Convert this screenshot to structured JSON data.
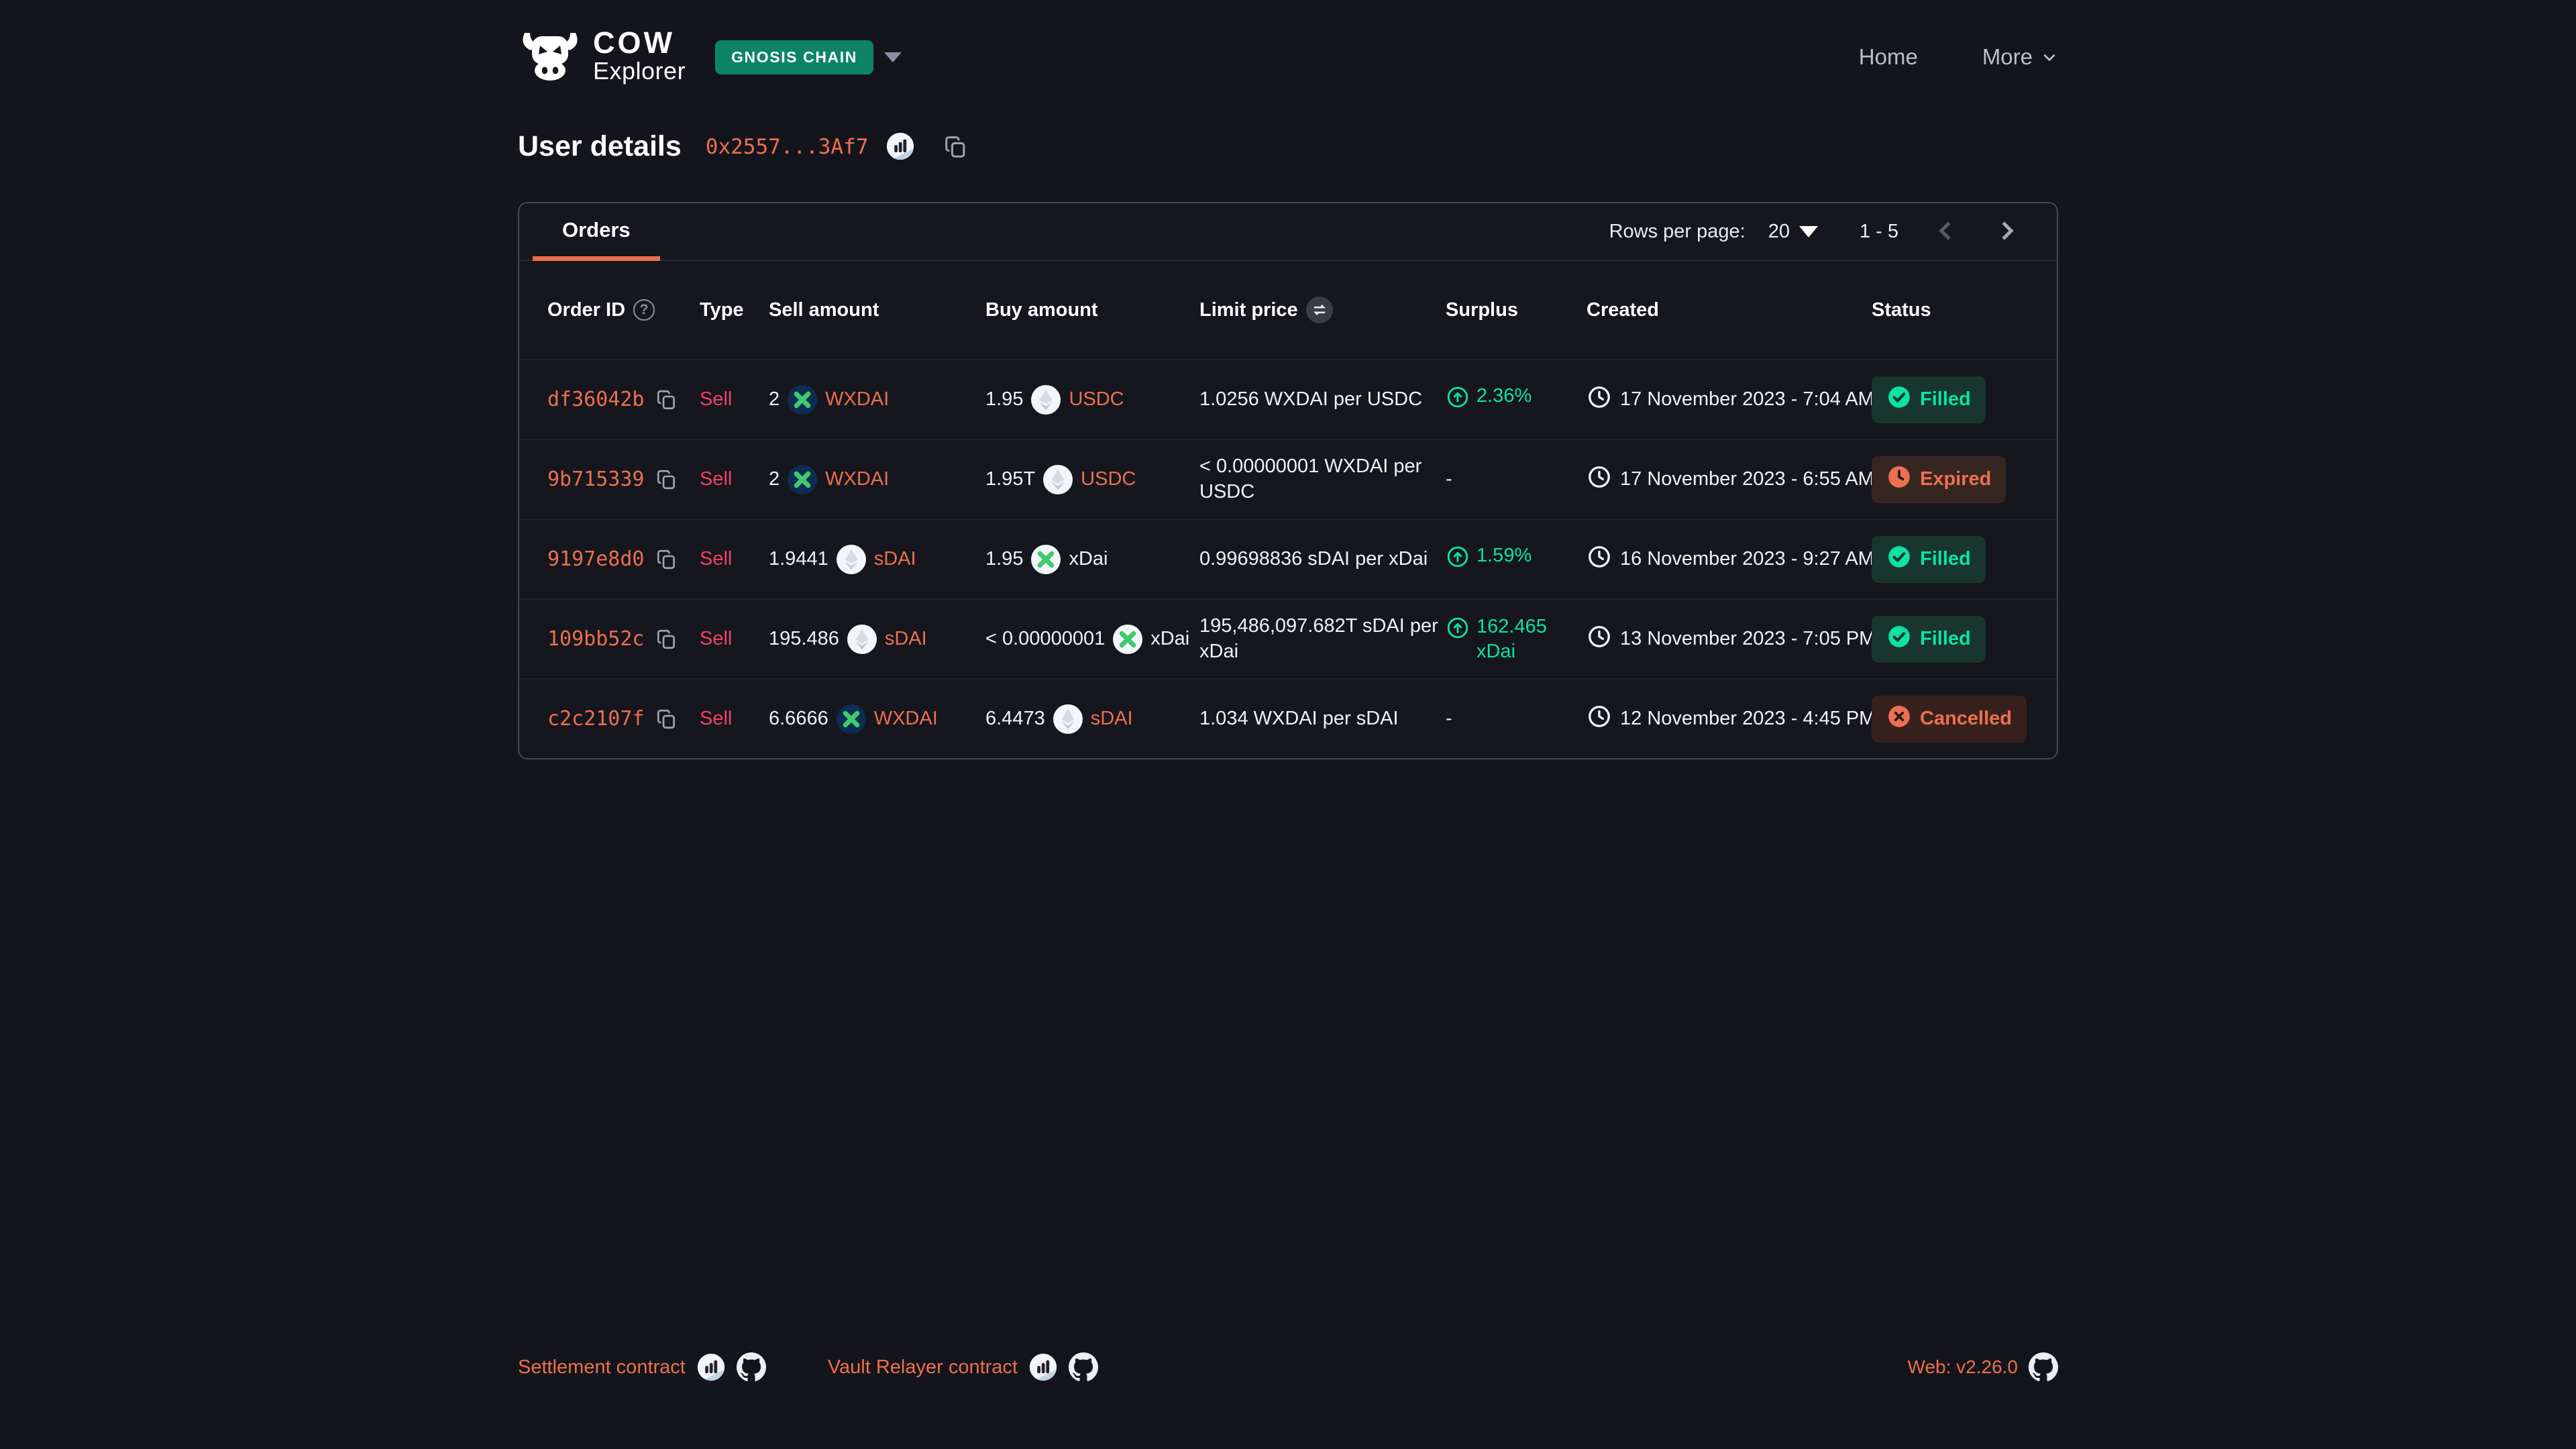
{
  "colors": {
    "accent": "#ed6f4d",
    "sell": "#f2415f",
    "green": "#0ce2a4",
    "warn": "#ed7052",
    "chain_badge_bg": "#0e8466",
    "page_bg": "#14151c"
  },
  "brand": {
    "logo_top": "COW",
    "logo_sub": "Explorer",
    "chain_badge": "GNOSIS CHAIN"
  },
  "nav": {
    "home": "Home",
    "more": "More"
  },
  "page": {
    "title": "User details",
    "address": "0x2557...3Af7"
  },
  "table": {
    "tab_label": "Orders",
    "pagination": {
      "rows_per_page_label": "Rows per page:",
      "page_size": "20",
      "range": "1 - 5"
    },
    "columns": [
      "Order ID",
      "Type",
      "Sell amount",
      "Buy amount",
      "Limit price",
      "Surplus",
      "Created",
      "Status"
    ],
    "rows": [
      {
        "order_id": "df36042b",
        "type": "Sell",
        "sell_amount": "2",
        "sell_token": "WXDAI",
        "sell_icon": "wxdai-token-icon",
        "sell_token_link": true,
        "buy_amount": "1.95",
        "buy_token": "USDC",
        "buy_icon": "eth-placeholder-token-icon",
        "buy_token_link": true,
        "limit_price": "1.0256 WXDAI per USDC",
        "surplus": "2.36%",
        "created": "17 November 2023 - 7:04 AM",
        "status": "Filled",
        "status_kind": "filled"
      },
      {
        "order_id": "9b715339",
        "type": "Sell",
        "sell_amount": "2",
        "sell_token": "WXDAI",
        "sell_icon": "wxdai-token-icon",
        "sell_token_link": true,
        "buy_amount": "1.95T",
        "buy_token": "USDC",
        "buy_icon": "eth-placeholder-token-icon",
        "buy_token_link": true,
        "limit_price": "< 0.00000001 WXDAI per USDC",
        "surplus": "-",
        "created": "17 November 2023 - 6:55 AM",
        "status": "Expired",
        "status_kind": "expired"
      },
      {
        "order_id": "9197e8d0",
        "type": "Sell",
        "sell_amount": "1.9441",
        "sell_token": "sDAI",
        "sell_icon": "eth-placeholder-token-icon",
        "sell_token_link": true,
        "buy_amount": "1.95",
        "buy_token": "xDai",
        "buy_icon": "xdai-token-icon",
        "buy_token_link": false,
        "limit_price": "0.99698836 sDAI per xDai",
        "surplus": "1.59%",
        "created": "16 November 2023 - 9:27 AM",
        "status": "Filled",
        "status_kind": "filled"
      },
      {
        "order_id": "109bb52c",
        "type": "Sell",
        "sell_amount": "195.486",
        "sell_token": "sDAI",
        "sell_icon": "eth-placeholder-token-icon",
        "sell_token_link": true,
        "buy_amount": "< 0.00000001",
        "buy_token": "xDai",
        "buy_icon": "xdai-token-icon",
        "buy_token_link": false,
        "limit_price": "195,486,097.682T sDAI per xDai",
        "surplus": "162.465 xDai",
        "created": "13 November 2023 - 7:05 PM",
        "status": "Filled",
        "status_kind": "filled"
      },
      {
        "order_id": "c2c2107f",
        "type": "Sell",
        "sell_amount": "6.6666",
        "sell_token": "WXDAI",
        "sell_icon": "wxdai-token-icon",
        "sell_token_link": true,
        "buy_amount": "6.4473",
        "buy_token": "sDAI",
        "buy_icon": "eth-placeholder-token-icon",
        "buy_token_link": true,
        "limit_price": "1.034 WXDAI per sDAI",
        "surplus": "-",
        "created": "12 November 2023 - 4:45 PM",
        "status": "Cancelled",
        "status_kind": "cancelled"
      }
    ]
  },
  "footer": {
    "links": [
      {
        "label": "Settlement contract"
      },
      {
        "label": "Vault Relayer contract"
      }
    ],
    "version_label": "Web: v2.26.0"
  }
}
